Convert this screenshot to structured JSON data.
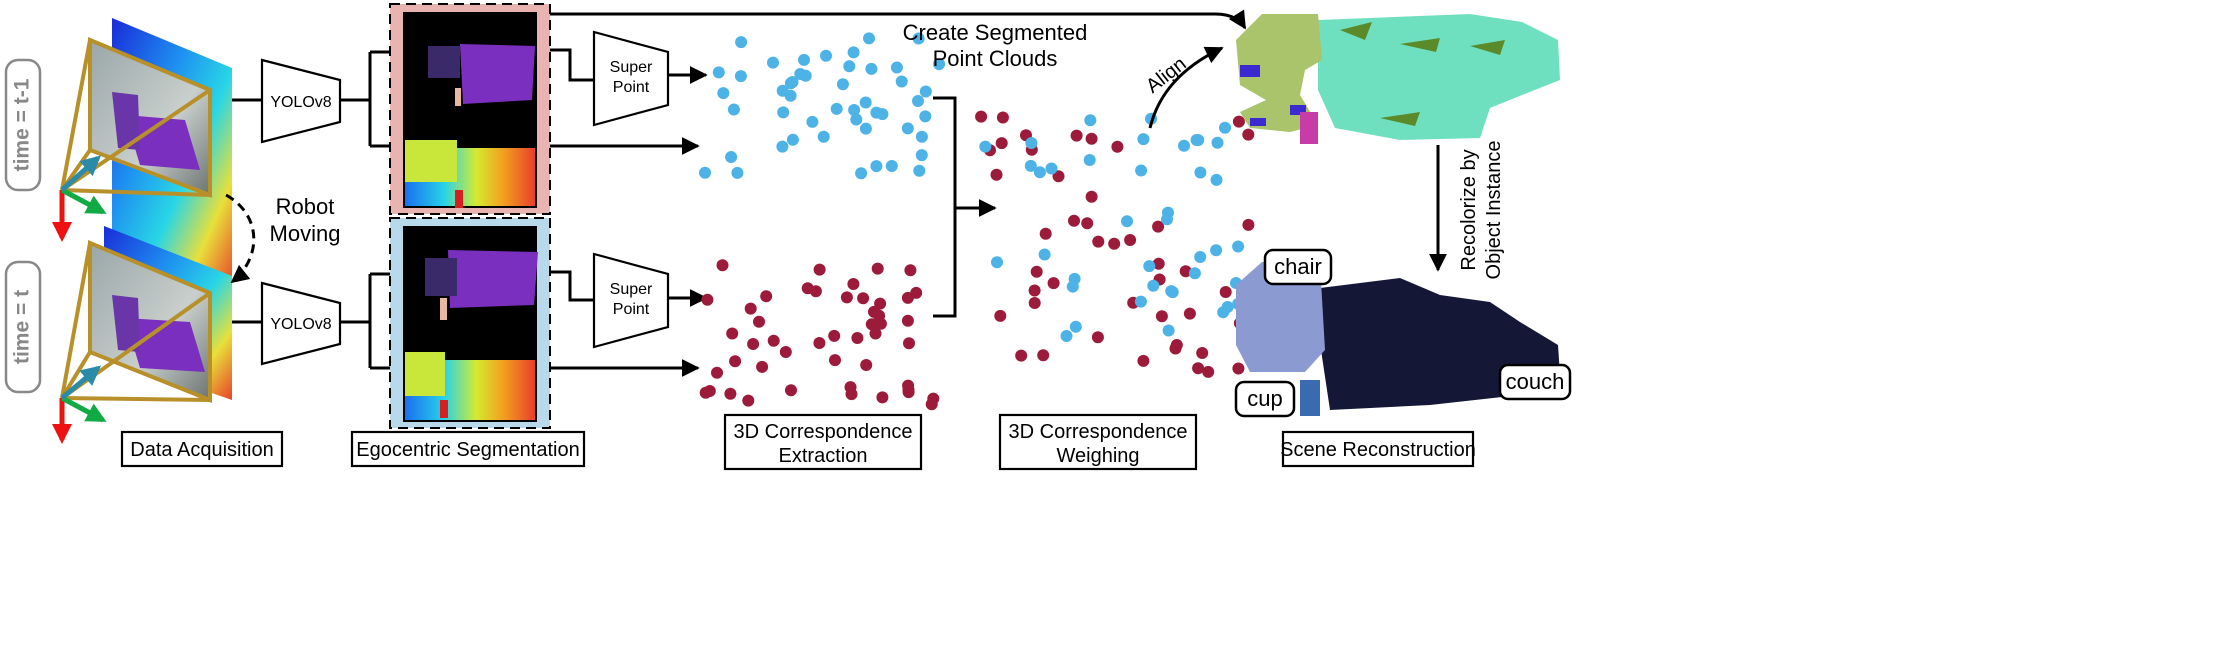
{
  "time_labels": [
    "time = t-1",
    "time = t"
  ],
  "detector_label": "YOLOv8",
  "keypoint_label": [
    "Super",
    "Point"
  ],
  "robot_moving": [
    "Robot",
    "Moving"
  ],
  "create_segmented": [
    "Create Segmented",
    "Point Clouds"
  ],
  "align_label": "Align",
  "recolorize": [
    "Recolorize by",
    "Object Instance"
  ],
  "object_labels": {
    "chair": "chair",
    "cup": "cup",
    "couch": "couch"
  },
  "stage_labels": {
    "acquisition": "Data Acquisition",
    "segmentation": "Egocentric Segmentation",
    "extraction": [
      "3D Correspondence",
      "Extraction"
    ],
    "weighing": [
      "3D Correspondence",
      "Weighing"
    ],
    "reconstruction": "Scene Reconstruction"
  },
  "colors": {
    "frame_gold": "#b8902a",
    "purple_couch": "#7b2fbf",
    "point_blue": "#4db3e6",
    "point_red": "#9c1b3a",
    "seg_top_bg": "#e8b3b0",
    "seg_bottom_bg": "#b7d9ea",
    "recon_mint": "#6fe0bf",
    "recon_olive": "#a9c46a",
    "recon_navy": "#141836",
    "recon_chair": "#8b9bd2",
    "axis_red": "#ee1111",
    "axis_green": "#11aa44",
    "axis_blue": "#2a8aa8"
  }
}
